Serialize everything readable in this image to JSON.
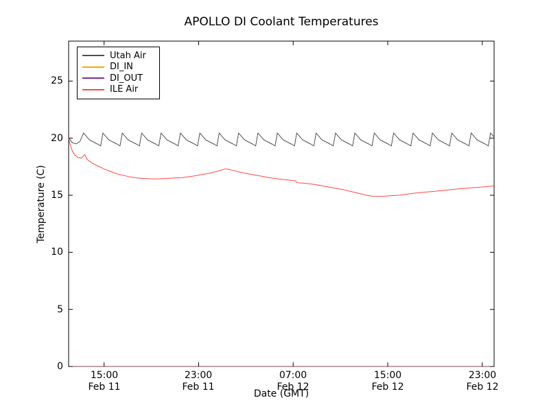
{
  "chart_data": {
    "type": "line",
    "title": "APOLLO DI Coolant Temperatures",
    "xlabel": "Date (GMT)",
    "ylabel": "Temperature (C)",
    "xlim": [
      0,
      36
    ],
    "ylim": [
      0,
      28.5
    ],
    "x_unit_note": "hours since Feb 11 12:00 GMT",
    "grid": false,
    "legend_position": "upper left",
    "yticks": [
      {
        "value": 0,
        "label": "0"
      },
      {
        "value": 5,
        "label": "5"
      },
      {
        "value": 10,
        "label": "10"
      },
      {
        "value": 15,
        "label": "15"
      },
      {
        "value": 20,
        "label": "20"
      },
      {
        "value": 25,
        "label": "25"
      }
    ],
    "xticks": [
      {
        "value": 3,
        "time": "15:00",
        "date": "Feb 11"
      },
      {
        "value": 11,
        "time": "23:00",
        "date": "Feb 11"
      },
      {
        "value": 19,
        "time": "07:00",
        "date": "Feb 12"
      },
      {
        "value": 27,
        "time": "15:00",
        "date": "Feb 12"
      },
      {
        "value": 35,
        "time": "23:00",
        "date": "Feb 12"
      }
    ],
    "series": [
      {
        "name": "Utah Air",
        "color": "#4d4d4d",
        "points": [
          [
            0,
            20.05
          ],
          [
            0.3,
            19.6
          ],
          [
            0.65,
            19.5
          ],
          [
            0.95,
            19.7
          ],
          [
            1.26,
            20.45
          ],
          [
            1.76,
            19.85
          ],
          [
            2.41,
            19.5
          ],
          [
            2.71,
            19.32
          ],
          [
            2.9,
            20.45
          ],
          [
            3.4,
            19.85
          ],
          [
            4.05,
            19.5
          ],
          [
            4.35,
            19.32
          ],
          [
            4.54,
            20.45
          ],
          [
            5.04,
            19.85
          ],
          [
            5.69,
            19.5
          ],
          [
            5.99,
            19.32
          ],
          [
            6.18,
            20.45
          ],
          [
            6.68,
            19.85
          ],
          [
            7.33,
            19.5
          ],
          [
            7.63,
            19.32
          ],
          [
            7.82,
            20.45
          ],
          [
            8.32,
            19.85
          ],
          [
            8.97,
            19.5
          ],
          [
            9.27,
            19.32
          ],
          [
            9.46,
            20.45
          ],
          [
            9.96,
            19.85
          ],
          [
            10.61,
            19.5
          ],
          [
            10.91,
            19.32
          ],
          [
            11.1,
            20.45
          ],
          [
            11.6,
            19.85
          ],
          [
            12.25,
            19.5
          ],
          [
            12.55,
            19.32
          ],
          [
            12.74,
            20.45
          ],
          [
            13.24,
            19.85
          ],
          [
            13.89,
            19.5
          ],
          [
            14.19,
            19.32
          ],
          [
            14.38,
            20.45
          ],
          [
            14.88,
            19.85
          ],
          [
            15.53,
            19.5
          ],
          [
            15.83,
            19.32
          ],
          [
            16.02,
            20.45
          ],
          [
            16.52,
            19.85
          ],
          [
            17.17,
            19.5
          ],
          [
            17.47,
            19.32
          ],
          [
            17.66,
            20.45
          ],
          [
            18.16,
            19.85
          ],
          [
            18.81,
            19.5
          ],
          [
            19.11,
            19.32
          ],
          [
            19.3,
            20.45
          ],
          [
            19.8,
            19.85
          ],
          [
            20.45,
            19.5
          ],
          [
            20.75,
            19.32
          ],
          [
            20.94,
            20.45
          ],
          [
            21.44,
            19.85
          ],
          [
            22.09,
            19.5
          ],
          [
            22.39,
            19.32
          ],
          [
            22.58,
            20.45
          ],
          [
            23.08,
            19.85
          ],
          [
            23.73,
            19.5
          ],
          [
            24.03,
            19.32
          ],
          [
            24.22,
            20.45
          ],
          [
            24.72,
            19.85
          ],
          [
            25.37,
            19.5
          ],
          [
            25.67,
            19.32
          ],
          [
            25.86,
            20.45
          ],
          [
            26.36,
            19.85
          ],
          [
            27.01,
            19.5
          ],
          [
            27.31,
            19.32
          ],
          [
            27.5,
            20.45
          ],
          [
            28.0,
            19.85
          ],
          [
            28.65,
            19.5
          ],
          [
            28.95,
            19.32
          ],
          [
            29.14,
            20.45
          ],
          [
            29.64,
            19.85
          ],
          [
            30.29,
            19.5
          ],
          [
            30.59,
            19.32
          ],
          [
            30.78,
            20.45
          ],
          [
            31.28,
            19.85
          ],
          [
            31.93,
            19.5
          ],
          [
            32.23,
            19.32
          ],
          [
            32.42,
            20.45
          ],
          [
            32.92,
            19.85
          ],
          [
            33.57,
            19.5
          ],
          [
            33.87,
            19.32
          ],
          [
            34.06,
            20.45
          ],
          [
            34.56,
            19.85
          ],
          [
            35.21,
            19.5
          ],
          [
            35.51,
            19.32
          ],
          [
            35.7,
            20.45
          ],
          [
            36,
            20.1
          ]
        ]
      },
      {
        "name": "DI_IN",
        "color": "#ffa500",
        "opacity": 0.55,
        "points": [
          [
            0,
            0
          ],
          [
            36,
            0
          ]
        ]
      },
      {
        "name": "DI_OUT",
        "color": "#7e2f8e",
        "opacity": 0.55,
        "points": [
          [
            0,
            0
          ],
          [
            36,
            0
          ]
        ]
      },
      {
        "name": "ILE Air",
        "color": "#ff4444",
        "points": [
          [
            0,
            20.0
          ],
          [
            0.12,
            19.45
          ],
          [
            0.3,
            18.9
          ],
          [
            0.5,
            18.55
          ],
          [
            0.8,
            18.3
          ],
          [
            1.1,
            18.25
          ],
          [
            1.35,
            18.55
          ],
          [
            1.45,
            18.4
          ],
          [
            1.55,
            18.15
          ],
          [
            2.0,
            17.8
          ],
          [
            2.5,
            17.55
          ],
          [
            3.0,
            17.3
          ],
          [
            3.5,
            17.1
          ],
          [
            4.0,
            16.9
          ],
          [
            4.6,
            16.75
          ],
          [
            5.2,
            16.6
          ],
          [
            5.9,
            16.5
          ],
          [
            6.6,
            16.45
          ],
          [
            7.3,
            16.42
          ],
          [
            8.0,
            16.45
          ],
          [
            8.8,
            16.5
          ],
          [
            9.6,
            16.55
          ],
          [
            10.4,
            16.65
          ],
          [
            11.2,
            16.8
          ],
          [
            12.0,
            16.95
          ],
          [
            12.6,
            17.1
          ],
          [
            13.2,
            17.3
          ],
          [
            13.5,
            17.28
          ],
          [
            14.0,
            17.15
          ],
          [
            14.8,
            16.95
          ],
          [
            15.6,
            16.8
          ],
          [
            16.4,
            16.65
          ],
          [
            17.2,
            16.5
          ],
          [
            18.0,
            16.4
          ],
          [
            18.8,
            16.3
          ],
          [
            19.2,
            16.27
          ],
          [
            19.3,
            16.1
          ],
          [
            20.0,
            16.05
          ],
          [
            20.8,
            15.95
          ],
          [
            21.6,
            15.8
          ],
          [
            22.4,
            15.65
          ],
          [
            23.2,
            15.5
          ],
          [
            24.0,
            15.3
          ],
          [
            24.6,
            15.15
          ],
          [
            25.2,
            15.0
          ],
          [
            25.8,
            14.9
          ],
          [
            26.5,
            14.9
          ],
          [
            27.2,
            14.95
          ],
          [
            28.0,
            15.0
          ],
          [
            29.0,
            15.15
          ],
          [
            30.0,
            15.25
          ],
          [
            31.0,
            15.35
          ],
          [
            32.0,
            15.45
          ],
          [
            33.0,
            15.55
          ],
          [
            34.0,
            15.65
          ],
          [
            35.0,
            15.72
          ],
          [
            36,
            15.82
          ]
        ]
      }
    ]
  }
}
